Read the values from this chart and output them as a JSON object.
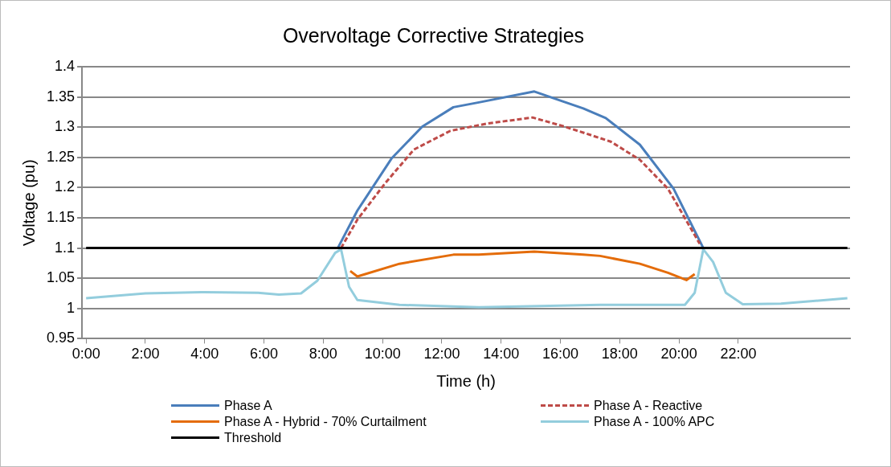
{
  "chart_data": {
    "type": "line",
    "title": "Overvoltage Corrective Strategies",
    "xlabel": "Time (h)",
    "ylabel": "Voltage (pu)",
    "xlim": [
      -0.14,
      25.77
    ],
    "xticks": [
      {
        "value": 0,
        "label": "0:00"
      },
      {
        "value": 2,
        "label": "2:00"
      },
      {
        "value": 4,
        "label": "4:00"
      },
      {
        "value": 6,
        "label": "6:00"
      },
      {
        "value": 8,
        "label": "8:00"
      },
      {
        "value": 10,
        "label": "10:00"
      },
      {
        "value": 12,
        "label": "12:00"
      },
      {
        "value": 14,
        "label": "14:00"
      },
      {
        "value": 16,
        "label": "16:00"
      },
      {
        "value": 18,
        "label": "18:00"
      },
      {
        "value": 20,
        "label": "20:00"
      },
      {
        "value": 22,
        "label": "22:00"
      }
    ],
    "ylim": [
      0.95,
      1.4
    ],
    "yticks": [
      0.95,
      1,
      1.05,
      1.1,
      1.15,
      1.2,
      1.25,
      1.3,
      1.35,
      1.4
    ],
    "grid": "y",
    "legend": "bottom",
    "marker": "none",
    "series": [
      {
        "name": "Phase A",
        "color": "#4a7ebb",
        "line_style": "solid",
        "x": [
          8.49,
          9.15,
          10.3,
          11.34,
          12.39,
          13.25,
          15.12,
          16,
          16.77,
          17.53,
          18.68,
          19.82,
          20.82
        ],
        "values": [
          1.1,
          1.162,
          1.248,
          1.301,
          1.333,
          1.341,
          1.359,
          1.344,
          1.331,
          1.315,
          1.271,
          1.198,
          1.1
        ]
      },
      {
        "name": "Phase A - Reactive",
        "color": "#be4b48",
        "line_style": "dashed",
        "x": [
          8.6,
          9.15,
          10.1,
          11.06,
          12.29,
          13.53,
          15.06,
          16,
          16.77,
          17.7,
          18.68,
          19.63,
          20.7
        ],
        "values": [
          1.1,
          1.147,
          1.208,
          1.263,
          1.294,
          1.306,
          1.316,
          1.303,
          1.291,
          1.276,
          1.246,
          1.198,
          1.107
        ]
      },
      {
        "name": "Phase A - Hybrid - 70% Curtailment",
        "color": "#e46c0a",
        "line_style": "solid",
        "x": [
          8.91,
          9.15,
          10.57,
          12.39,
          13.25,
          15.12,
          16.77,
          17.34,
          18.68,
          19.63,
          20.25,
          20.53
        ],
        "values": [
          1.062,
          1.053,
          1.074,
          1.089,
          1.089,
          1.094,
          1.089,
          1.087,
          1.074,
          1.059,
          1.047,
          1.057
        ]
      },
      {
        "name": "Phase A - 100% APC",
        "color": "#93cddd",
        "line_style": "solid",
        "x": [
          0,
          2,
          3.9,
          5.8,
          6.5,
          7.25,
          7.8,
          8.4,
          8.6,
          8.87,
          9.15,
          10.57,
          13.25,
          17.34,
          20.2,
          20.53,
          20.82,
          21.15,
          21.58,
          22.15,
          23.44,
          25.68
        ],
        "values": [
          1.017,
          1.025,
          1.027,
          1.026,
          1.023,
          1.025,
          1.046,
          1.092,
          1.098,
          1.036,
          1.014,
          1.006,
          1.002,
          1.006,
          1.006,
          1.026,
          1.098,
          1.077,
          1.026,
          1.007,
          1.008,
          1.017
        ]
      },
      {
        "name": "Threshold",
        "color": "#000000",
        "line_style": "solid",
        "x": [
          0,
          25.68
        ],
        "values": [
          1.1,
          1.1
        ]
      }
    ]
  }
}
